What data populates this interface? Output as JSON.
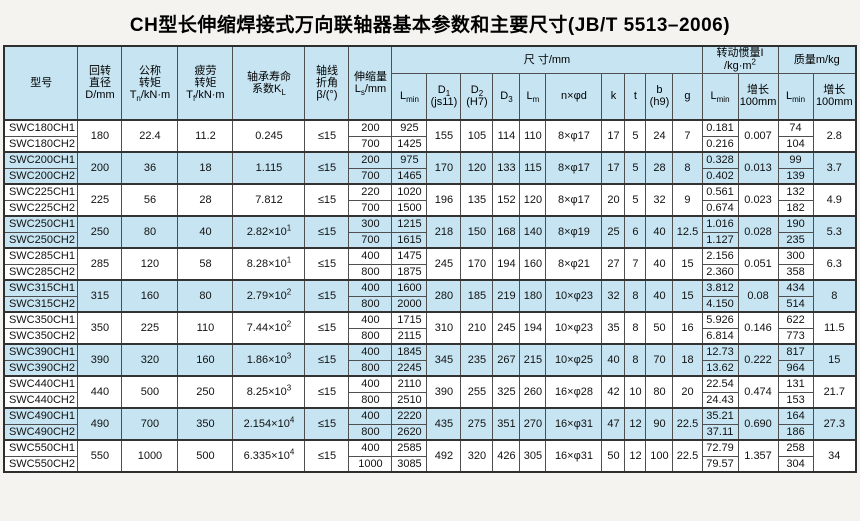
{
  "title": "CH型长伸缩焊接式万向联轴器基本参数和主要尺寸(JB/T 5513–2006)",
  "colors": {
    "header_bg": "#c6e4f1",
    "row_highlight": "#c6e4f1",
    "border": "#4f4f4f"
  },
  "header": {
    "model": "型号",
    "rotary": {
      "l1": "回转",
      "l2": "直径",
      "l3": "D/mm"
    },
    "nominal_torque": {
      "l1": "公称",
      "l2": "转矩",
      "sym": "T",
      "sub": "n",
      "unit": "/kN·m"
    },
    "fatigue_torque": {
      "l1": "疲劳",
      "l2": "转矩",
      "sym": "T",
      "sub": "f",
      "unit": "/kN·m"
    },
    "bearing_life": {
      "l1": "轴承寿命",
      "l2": "系数K",
      "sub": "L"
    },
    "axis_angle": {
      "l1": "轴线",
      "l2": "折角",
      "l3": "β/(°)"
    },
    "telescopic": {
      "l1": "伸缩量",
      "sym": "L",
      "sub": "s",
      "unit": "/mm"
    },
    "dim_group": "尺  寸/mm",
    "lmin": {
      "sym": "L",
      "sub": "min"
    },
    "d1": {
      "sym": "D",
      "sub": "1",
      "l2": "(js11)"
    },
    "d2": {
      "sym": "D",
      "sub": "2",
      "l2": "(H7)"
    },
    "d3": {
      "sym": "D",
      "sub": "3"
    },
    "lm": {
      "sym": "L",
      "sub": "m"
    },
    "nxd": "n×φd",
    "k": "k",
    "t": "t",
    "b": {
      "l1": "b",
      "l2": "(h9)"
    },
    "g": "g",
    "inertia_group": {
      "l1": "转动惯量I",
      "l2": "/kg·m",
      "sup": "2"
    },
    "mass_group": "质量m/kg",
    "growth": {
      "l1": "增长",
      "l2": "100mm"
    }
  },
  "rows": [
    {
      "model1": "SWC180CH1",
      "model2": "SWC180CH2",
      "D": "180",
      "Tn": "22.4",
      "Tf": "11.2",
      "KL": "0.245",
      "KL_exp": "",
      "beta": "≤15",
      "Ls": [
        "200",
        "700"
      ],
      "Lmin": [
        "925",
        "1425"
      ],
      "D1": "155",
      "D2": "105",
      "D3": "114",
      "Lm": "110",
      "nxd": "8×φ17",
      "k": "17",
      "t": "5",
      "b": "24",
      "g": "7",
      "I": [
        "0.181",
        "0.216"
      ],
      "I_growth": "0.007",
      "m": [
        "74",
        "104"
      ],
      "m_growth": "2.8",
      "highlight": false
    },
    {
      "model1": "SWC200CH1",
      "model2": "SWC200CH2",
      "D": "200",
      "Tn": "36",
      "Tf": "18",
      "KL": "1.115",
      "KL_exp": "",
      "beta": "≤15",
      "Ls": [
        "200",
        "700"
      ],
      "Lmin": [
        "975",
        "1465"
      ],
      "D1": "170",
      "D2": "120",
      "D3": "133",
      "Lm": "115",
      "nxd": "8×φ17",
      "k": "17",
      "t": "5",
      "b": "28",
      "g": "8",
      "I": [
        "0.328",
        "0.402"
      ],
      "I_growth": "0.013",
      "m": [
        "99",
        "139"
      ],
      "m_growth": "3.7",
      "highlight": true
    },
    {
      "model1": "SWC225CH1",
      "model2": "SWC225CH2",
      "D": "225",
      "Tn": "56",
      "Tf": "28",
      "KL": "7.812",
      "KL_exp": "",
      "beta": "≤15",
      "Ls": [
        "220",
        "700"
      ],
      "Lmin": [
        "1020",
        "1500"
      ],
      "D1": "196",
      "D2": "135",
      "D3": "152",
      "Lm": "120",
      "nxd": "8×φ17",
      "k": "20",
      "t": "5",
      "b": "32",
      "g": "9",
      "I": [
        "0.561",
        "0.674"
      ],
      "I_growth": "0.023",
      "m": [
        "132",
        "182"
      ],
      "m_growth": "4.9",
      "highlight": false
    },
    {
      "model1": "SWC250CH1",
      "model2": "SWC250CH2",
      "D": "250",
      "Tn": "80",
      "Tf": "40",
      "KL": "2.82×10",
      "KL_exp": "1",
      "beta": "≤15",
      "Ls": [
        "300",
        "700"
      ],
      "Lmin": [
        "1215",
        "1615"
      ],
      "D1": "218",
      "D2": "150",
      "D3": "168",
      "Lm": "140",
      "nxd": "8×φ19",
      "k": "25",
      "t": "6",
      "b": "40",
      "g": "12.5",
      "I": [
        "1.016",
        "1.127"
      ],
      "I_growth": "0.028",
      "m": [
        "190",
        "235"
      ],
      "m_growth": "5.3",
      "highlight": true
    },
    {
      "model1": "SWC285CH1",
      "model2": "SWC285CH2",
      "D": "285",
      "Tn": "120",
      "Tf": "58",
      "KL": "8.28×10",
      "KL_exp": "1",
      "beta": "≤15",
      "Ls": [
        "400",
        "800"
      ],
      "Lmin": [
        "1475",
        "1875"
      ],
      "D1": "245",
      "D2": "170",
      "D3": "194",
      "Lm": "160",
      "nxd": "8×φ21",
      "k": "27",
      "t": "7",
      "b": "40",
      "g": "15",
      "I": [
        "2.156",
        "2.360"
      ],
      "I_growth": "0.051",
      "m": [
        "300",
        "358"
      ],
      "m_growth": "6.3",
      "highlight": false
    },
    {
      "model1": "SWC315CH1",
      "model2": "SWC315CH2",
      "D": "315",
      "Tn": "160",
      "Tf": "80",
      "KL": "2.79×10",
      "KL_exp": "2",
      "beta": "≤15",
      "Ls": [
        "400",
        "800"
      ],
      "Lmin": [
        "1600",
        "2000"
      ],
      "D1": "280",
      "D2": "185",
      "D3": "219",
      "Lm": "180",
      "nxd": "10×φ23",
      "k": "32",
      "t": "8",
      "b": "40",
      "g": "15",
      "I": [
        "3.812",
        "4.150"
      ],
      "I_growth": "0.08",
      "m": [
        "434",
        "514"
      ],
      "m_growth": "8",
      "highlight": true
    },
    {
      "model1": "SWC350CH1",
      "model2": "SWC350CH2",
      "D": "350",
      "Tn": "225",
      "Tf": "110",
      "KL": "7.44×10",
      "KL_exp": "2",
      "beta": "≤15",
      "Ls": [
        "400",
        "800"
      ],
      "Lmin": [
        "1715",
        "2115"
      ],
      "D1": "310",
      "D2": "210",
      "D3": "245",
      "Lm": "194",
      "nxd": "10×φ23",
      "k": "35",
      "t": "8",
      "b": "50",
      "g": "16",
      "I": [
        "5.926",
        "6.814"
      ],
      "I_growth": "0.146",
      "m": [
        "622",
        "773"
      ],
      "m_growth": "11.5",
      "highlight": false
    },
    {
      "model1": "SWC390CH1",
      "model2": "SWC390CH2",
      "D": "390",
      "Tn": "320",
      "Tf": "160",
      "KL": "1.86×10",
      "KL_exp": "3",
      "beta": "≤15",
      "Ls": [
        "400",
        "800"
      ],
      "Lmin": [
        "1845",
        "2245"
      ],
      "D1": "345",
      "D2": "235",
      "D3": "267",
      "Lm": "215",
      "nxd": "10×φ25",
      "k": "40",
      "t": "8",
      "b": "70",
      "g": "18",
      "I": [
        "12.73",
        "13.62"
      ],
      "I_growth": "0.222",
      "m": [
        "817",
        "964"
      ],
      "m_growth": "15",
      "highlight": true
    },
    {
      "model1": "SWC440CH1",
      "model2": "SWC440CH2",
      "D": "440",
      "Tn": "500",
      "Tf": "250",
      "KL": "8.25×10",
      "KL_exp": "3",
      "beta": "≤15",
      "Ls": [
        "400",
        "800"
      ],
      "Lmin": [
        "2110",
        "2510"
      ],
      "D1": "390",
      "D2": "255",
      "D3": "325",
      "Lm": "260",
      "nxd": "16×φ28",
      "k": "42",
      "t": "10",
      "b": "80",
      "g": "20",
      "I": [
        "22.54",
        "24.43"
      ],
      "I_growth": "0.474",
      "m": [
        "131",
        "153"
      ],
      "m_growth": "21.7",
      "highlight": false
    },
    {
      "model1": "SWC490CH1",
      "model2": "SWC490CH2",
      "D": "490",
      "Tn": "700",
      "Tf": "350",
      "KL": "2.154×10",
      "KL_exp": "4",
      "beta": "≤15",
      "Ls": [
        "400",
        "800"
      ],
      "Lmin": [
        "2220",
        "2620"
      ],
      "D1": "435",
      "D2": "275",
      "D3": "351",
      "Lm": "270",
      "nxd": "16×φ31",
      "k": "47",
      "t": "12",
      "b": "90",
      "g": "22.5",
      "I": [
        "35.21",
        "37.11"
      ],
      "I_growth": "0.690",
      "m": [
        "164",
        "186"
      ],
      "m_growth": "27.3",
      "highlight": true
    },
    {
      "model1": "SWC550CH1",
      "model2": "SWC550CH2",
      "D": "550",
      "Tn": "1000",
      "Tf": "500",
      "KL": "6.335×10",
      "KL_exp": "4",
      "beta": "≤15",
      "Ls": [
        "400",
        "1000"
      ],
      "Lmin": [
        "2585",
        "3085"
      ],
      "D1": "492",
      "D2": "320",
      "D3": "426",
      "Lm": "305",
      "nxd": "16×φ31",
      "k": "50",
      "t": "12",
      "b": "100",
      "g": "22.5",
      "I": [
        "72.79",
        "79.57"
      ],
      "I_growth": "1.357",
      "m": [
        "258",
        "304"
      ],
      "m_growth": "34",
      "highlight": false
    }
  ]
}
